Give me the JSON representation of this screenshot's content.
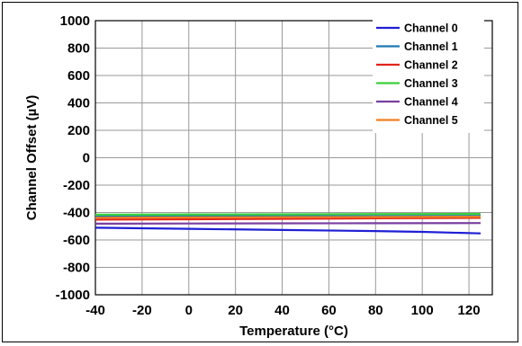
{
  "chart_data": {
    "type": "line",
    "title": "",
    "xlabel": "Temperature (°C)",
    "ylabel": "Channel Offset (µV)",
    "xlim": [
      -40,
      130
    ],
    "ylim": [
      -1000,
      1000
    ],
    "xticks": [
      -40,
      -20,
      0,
      20,
      40,
      60,
      80,
      100,
      120
    ],
    "yticks": [
      1000,
      800,
      600,
      400,
      200,
      0,
      -200,
      -400,
      -600,
      -800,
      -1000
    ],
    "grid": true,
    "legend_position": "top-right",
    "series": [
      {
        "name": "Channel 0",
        "color": "#1f1fd6",
        "x": [
          -40,
          0,
          40,
          80,
          100,
          125
        ],
        "y": [
          -511,
          -519,
          -527,
          -535,
          -541,
          -552
        ]
      },
      {
        "name": "Channel 1",
        "color": "#1f77b4",
        "x": [
          -40,
          0,
          40,
          80,
          125
        ],
        "y": [
          -428,
          -427,
          -426,
          -425,
          -424
        ]
      },
      {
        "name": "Channel 2",
        "color": "#e3231b",
        "x": [
          -40,
          0,
          40,
          80,
          125
        ],
        "y": [
          -452,
          -449,
          -446,
          -442,
          -439
        ]
      },
      {
        "name": "Channel 3",
        "color": "#3ad13a",
        "x": [
          -40,
          0,
          40,
          80,
          125
        ],
        "y": [
          -416,
          -414,
          -413,
          -411,
          -410
        ]
      },
      {
        "name": "Channel 4",
        "color": "#7a3fa0",
        "x": [
          -40,
          0,
          40,
          80,
          125
        ],
        "y": [
          -481,
          -480,
          -479,
          -478,
          -477
        ]
      },
      {
        "name": "Channel 5",
        "color": "#f07f1f",
        "x": [
          -40,
          0,
          40,
          80,
          125
        ],
        "y": [
          -438,
          -436,
          -434,
          -433,
          -431
        ]
      }
    ]
  }
}
